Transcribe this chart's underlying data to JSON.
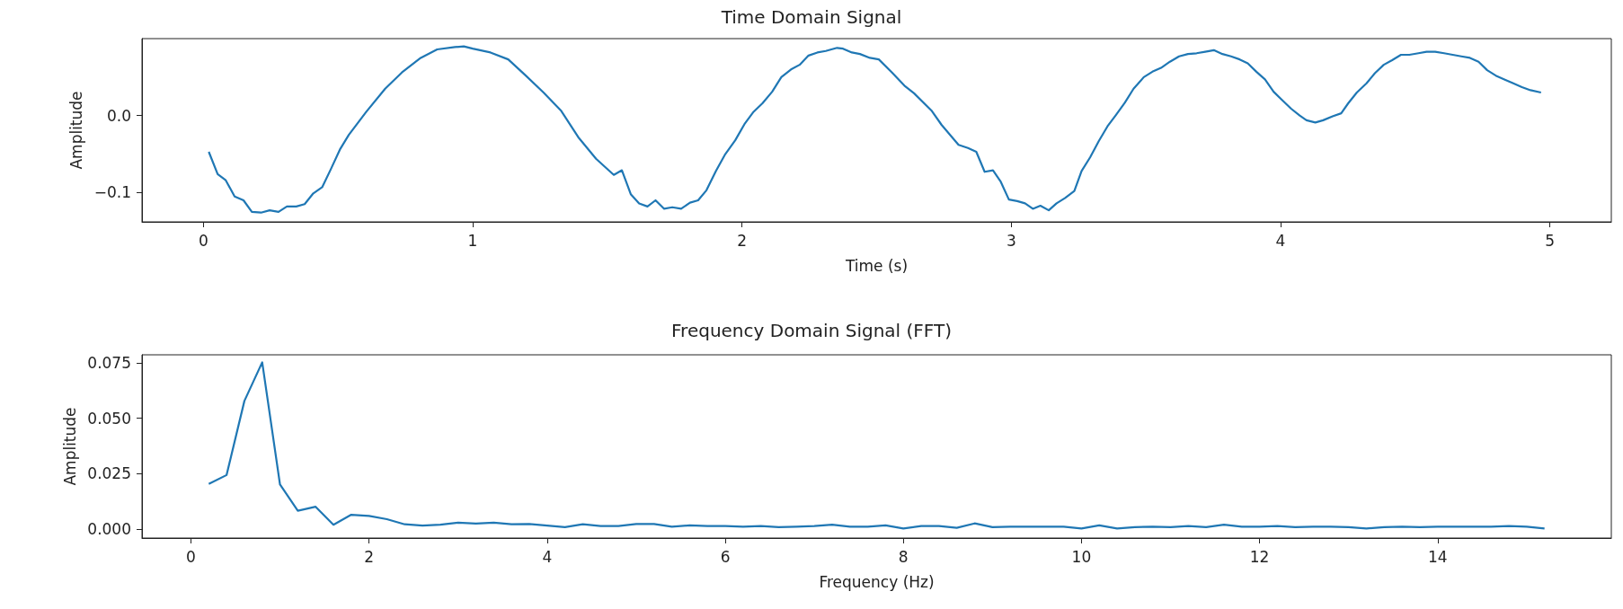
{
  "chart_data": [
    {
      "type": "line",
      "title": "Time Domain Signal",
      "xlabel": "Time (s)",
      "ylabel": "Amplitude",
      "color": "#1f77b4",
      "grid": false,
      "x": [
        0.02,
        0.053,
        0.083,
        0.116,
        0.149,
        0.18,
        0.214,
        0.246,
        0.279,
        0.31,
        0.345,
        0.376,
        0.408,
        0.441,
        0.474,
        0.507,
        0.54,
        0.605,
        0.675,
        0.737,
        0.807,
        0.868,
        0.934,
        0.967,
        1.0,
        1.066,
        1.132,
        1.197,
        1.263,
        1.329,
        1.392,
        1.458,
        1.524,
        1.554,
        1.587,
        1.618,
        1.649,
        1.679,
        1.711,
        1.741,
        1.774,
        1.807,
        1.837,
        1.868,
        1.903,
        1.938,
        1.975,
        2.011,
        2.043,
        2.076,
        2.112,
        2.146,
        2.182,
        2.214,
        2.247,
        2.28,
        2.311,
        2.353,
        2.375,
        2.408,
        2.438,
        2.475,
        2.508,
        2.557,
        2.603,
        2.639,
        2.705,
        2.741,
        2.804,
        2.839,
        2.87,
        2.901,
        2.932,
        2.961,
        2.991,
        3.022,
        3.051,
        3.08,
        3.108,
        3.139,
        3.168,
        3.2,
        3.234,
        3.261,
        3.293,
        3.325,
        3.357,
        3.389,
        3.422,
        3.454,
        3.492,
        3.524,
        3.556,
        3.589,
        3.623,
        3.656,
        3.688,
        3.72,
        3.752,
        3.784,
        3.816,
        3.848,
        3.878,
        3.91,
        3.942,
        3.974,
        4.006,
        4.039,
        4.071,
        4.096,
        4.129,
        4.158,
        4.193,
        4.225,
        4.251,
        4.283,
        4.319,
        4.35,
        4.383,
        4.414,
        4.447,
        4.478,
        4.512,
        4.542,
        4.574,
        4.607,
        4.639,
        4.671,
        4.703,
        4.735,
        4.767,
        4.799,
        4.831,
        4.864,
        4.896,
        4.928,
        4.967
      ],
      "values": [
        -0.047,
        -0.076,
        -0.084,
        -0.105,
        -0.11,
        -0.125,
        -0.126,
        -0.123,
        -0.125,
        -0.118,
        -0.118,
        -0.115,
        -0.101,
        -0.093,
        -0.069,
        -0.044,
        -0.025,
        0.005,
        0.035,
        0.056,
        0.075,
        0.086,
        0.089,
        0.09,
        0.087,
        0.082,
        0.073,
        0.052,
        0.03,
        0.006,
        -0.028,
        -0.056,
        -0.077,
        -0.071,
        -0.102,
        -0.114,
        -0.118,
        -0.11,
        -0.121,
        -0.119,
        -0.121,
        -0.113,
        -0.11,
        -0.097,
        -0.072,
        -0.05,
        -0.032,
        -0.01,
        0.005,
        0.016,
        0.031,
        0.05,
        0.06,
        0.066,
        0.078,
        0.082,
        0.084,
        0.088,
        0.087,
        0.082,
        0.08,
        0.075,
        0.073,
        0.056,
        0.039,
        0.029,
        0.006,
        -0.012,
        -0.038,
        -0.042,
        -0.047,
        -0.073,
        -0.071,
        -0.086,
        -0.109,
        -0.111,
        -0.114,
        -0.121,
        -0.117,
        -0.123,
        -0.114,
        -0.107,
        -0.098,
        -0.072,
        -0.054,
        -0.033,
        -0.014,
        0.001,
        0.017,
        0.035,
        0.05,
        0.057,
        0.062,
        0.07,
        0.077,
        0.08,
        0.081,
        0.083,
        0.085,
        0.08,
        0.077,
        0.073,
        0.068,
        0.057,
        0.047,
        0.031,
        0.02,
        0.009,
        0.0,
        -0.006,
        -0.009,
        -0.006,
        -0.001,
        0.003,
        0.016,
        0.03,
        0.042,
        0.055,
        0.066,
        0.072,
        0.079,
        0.079,
        0.081,
        0.083,
        0.083,
        0.081,
        0.079,
        0.077,
        0.075,
        0.07,
        0.059,
        0.052,
        0.047,
        0.042,
        0.037,
        0.033,
        0.03
      ],
      "xlim": [
        -0.228,
        5.228
      ],
      "ylim": [
        -0.138,
        0.1
      ],
      "xticks": [
        0,
        1,
        2,
        3,
        4,
        5
      ],
      "yticks": [
        {
          "value": -0.1,
          "label": "−0.1"
        },
        {
          "value": 0,
          "label": "0.0"
        }
      ]
    },
    {
      "type": "line",
      "title": "Frequency Domain Signal (FFT)",
      "xlabel": "Frequency (Hz)",
      "ylabel": "Amplitude",
      "color": "#1f77b4",
      "grid": false,
      "x": [
        0.2,
        0.4,
        0.6,
        0.8,
        1.0,
        1.2,
        1.4,
        1.6,
        1.8,
        2.0,
        2.2,
        2.4,
        2.6,
        2.8,
        3.0,
        3.2,
        3.4,
        3.6,
        3.8,
        4.0,
        4.2,
        4.4,
        4.6,
        4.8,
        5.0,
        5.2,
        5.4,
        5.6,
        5.8,
        6.0,
        6.2,
        6.4,
        6.6,
        6.8,
        7.0,
        7.2,
        7.4,
        7.6,
        7.8,
        8.0,
        8.2,
        8.4,
        8.6,
        8.8,
        9.0,
        9.2,
        9.4,
        9.6,
        9.8,
        10.0,
        10.2,
        10.4,
        10.6,
        10.8,
        11.0,
        11.2,
        11.4,
        11.6,
        11.8,
        12.0,
        12.2,
        12.4,
        12.6,
        12.8,
        13.0,
        13.2,
        13.4,
        13.6,
        13.8,
        14.0,
        14.2,
        14.4,
        14.6,
        14.8,
        15.0,
        15.2
      ],
      "values": [
        0.0204,
        0.0244,
        0.0578,
        0.0752,
        0.0201,
        0.0083,
        0.0101,
        0.002,
        0.0065,
        0.006,
        0.0045,
        0.0022,
        0.0016,
        0.002,
        0.0029,
        0.0025,
        0.0029,
        0.0022,
        0.0023,
        0.0016,
        0.0009,
        0.0022,
        0.0014,
        0.0014,
        0.0023,
        0.0023,
        0.0011,
        0.0017,
        0.0014,
        0.0014,
        0.0011,
        0.0014,
        0.0009,
        0.0011,
        0.0014,
        0.002,
        0.0011,
        0.0011,
        0.0017,
        0.0003,
        0.0014,
        0.0014,
        0.0006,
        0.0026,
        0.0009,
        0.0011,
        0.0011,
        0.0011,
        0.0011,
        0.0003,
        0.0017,
        0.0003,
        0.0009,
        0.0011,
        0.0009,
        0.0014,
        0.0009,
        0.002,
        0.0011,
        0.0011,
        0.0014,
        0.0009,
        0.0011,
        0.0011,
        0.0009,
        0.0003,
        0.0009,
        0.0011,
        0.0009,
        0.0011,
        0.0011,
        0.0011,
        0.0011,
        0.0014,
        0.0011,
        0.0003
      ],
      "xlim": [
        -0.55,
        15.95
      ],
      "ylim": [
        -0.004,
        0.0786
      ],
      "xticks": [
        0,
        2,
        4,
        6,
        8,
        10,
        12,
        14
      ],
      "yticks": [
        {
          "value": 0,
          "label": "0.000"
        },
        {
          "value": 0.025,
          "label": "0.025"
        },
        {
          "value": 0.05,
          "label": "0.050"
        },
        {
          "value": 0.075,
          "label": "0.075"
        }
      ]
    }
  ]
}
